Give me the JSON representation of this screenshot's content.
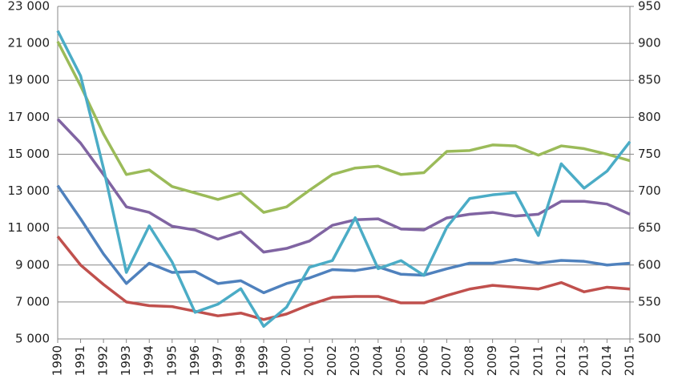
{
  "chart_data": {
    "type": "line",
    "categories": [
      "1990",
      "1991",
      "1992",
      "1993",
      "1994",
      "1995",
      "1996",
      "1997",
      "1998",
      "1999",
      "2000",
      "2001",
      "2002",
      "2003",
      "2004",
      "2005",
      "2006",
      "2007",
      "2008",
      "2009",
      "2010",
      "2011",
      "2012",
      "2013",
      "2014",
      "2015"
    ],
    "series": [
      {
        "color": "#9bbb59",
        "values": [
          21100,
          18700,
          16100,
          13900,
          14150,
          13250,
          12900,
          12550,
          12900,
          11850,
          12150,
          13050,
          13900,
          14250,
          14350,
          13900,
          14000,
          15150,
          15200,
          15500,
          15450,
          14950,
          15450,
          15300,
          15000,
          14650
        ]
      },
      {
        "color": "#8064a2",
        "values": [
          16900,
          15600,
          13900,
          12150,
          11850,
          11100,
          10900,
          10400,
          10800,
          9700,
          9900,
          10300,
          11150,
          11450,
          11500,
          10950,
          10900,
          11550,
          11750,
          11850,
          11650,
          11750,
          12450,
          12450,
          12300,
          11750
        ]
      },
      {
        "color": "#4f81bd",
        "values": [
          13300,
          11500,
          9600,
          8000,
          9100,
          8600,
          8650,
          8000,
          8150,
          7500,
          8000,
          8300,
          8750,
          8700,
          8900,
          8500,
          8450,
          8800,
          9100,
          9100,
          9300,
          9100,
          9250,
          9200,
          9000,
          9100
        ]
      },
      {
        "color": "#c0504d",
        "values": [
          10550,
          9000,
          7950,
          7000,
          6800,
          6750,
          6500,
          6250,
          6400,
          6050,
          6350,
          6850,
          7250,
          7300,
          7300,
          6950,
          6950,
          7350,
          7700,
          7900,
          7800,
          7700,
          8050,
          7550,
          7800,
          7700
        ]
      },
      {
        "color": "#4bacc6",
        "axis": "y2",
        "values": [
          917,
          856,
          731,
          590,
          653,
          604,
          536,
          547,
          568,
          517,
          543,
          597,
          606,
          664,
          595,
          606,
          586,
          651,
          690,
          695,
          698,
          640,
          737,
          704,
          727,
          767
        ]
      }
    ],
    "ylim": [
      5000,
      23000
    ],
    "yticks": [
      {
        "value": 5000,
        "label": "5 000"
      },
      {
        "value": 7000,
        "label": "7 000"
      },
      {
        "value": 9000,
        "label": "9 000"
      },
      {
        "value": 11000,
        "label": "11 000"
      },
      {
        "value": 13000,
        "label": "13 000"
      },
      {
        "value": 15000,
        "label": "15 000"
      },
      {
        "value": 17000,
        "label": "17 000"
      },
      {
        "value": 19000,
        "label": "19 000"
      },
      {
        "value": 21000,
        "label": "21 000"
      },
      {
        "value": 23000,
        "label": "23 000"
      }
    ],
    "y2lim": [
      500,
      950
    ],
    "y2ticks": [
      500,
      550,
      600,
      650,
      700,
      750,
      800,
      850,
      900,
      950
    ],
    "grid": true
  }
}
